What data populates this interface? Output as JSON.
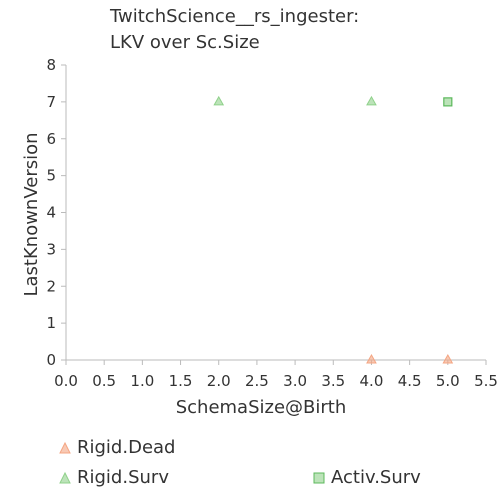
{
  "chart_data": {
    "type": "scatter",
    "title": [
      "TwitchScience__rs_ingester:",
      "LKV over Sc.Size"
    ],
    "xlabel": "SchemaSize@Birth",
    "ylabel": "LastKnownVersion",
    "xlim": [
      0,
      5.5
    ],
    "ylim": [
      0,
      8
    ],
    "xticks": [
      "0.0",
      "0.5",
      "1.0",
      "1.5",
      "2.0",
      "2.5",
      "3.0",
      "3.5",
      "4.0",
      "4.5",
      "5.0",
      "5.5"
    ],
    "yticks": [
      "0",
      "1",
      "2",
      "3",
      "4",
      "5",
      "6",
      "7",
      "8"
    ],
    "grid": false,
    "legend_position": "bottom",
    "series": [
      {
        "name": "Rigid.Dead",
        "marker": "triangle",
        "color": "#f4a582",
        "points": [
          [
            4,
            0
          ],
          [
            5,
            0
          ]
        ]
      },
      {
        "name": "Rigid.Surv",
        "marker": "triangle",
        "color": "#8fd18a",
        "points": [
          [
            2,
            7
          ],
          [
            4,
            7
          ]
        ]
      },
      {
        "name": "Activ.Surv",
        "marker": "square",
        "color": "#5cb85c",
        "points": [
          [
            5,
            7
          ]
        ]
      }
    ]
  }
}
